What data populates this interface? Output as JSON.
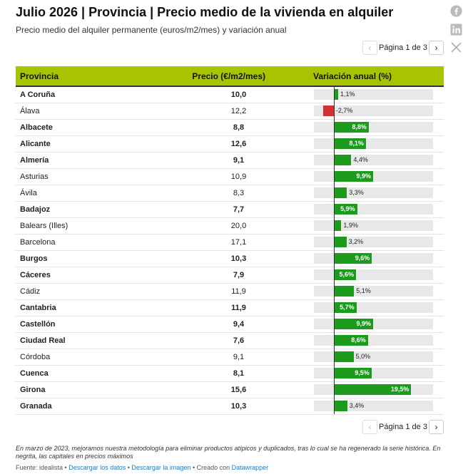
{
  "header": {
    "title": "Julio 2026 | Provincia | Precio medio de la vivienda en alquiler",
    "subtitle": "Precio medio del alquiler permanente (euros/m2/mes) y variación anual"
  },
  "social": {
    "facebook_icon": "facebook-icon",
    "linkedin_icon": "linkedin-icon",
    "x_icon": "x-icon"
  },
  "pagination": {
    "label": "Página 1 de 3",
    "prev_glyph": "‹",
    "next_glyph": "›"
  },
  "colors": {
    "header_bg": "#a8c400",
    "positive": "#1c9a1c",
    "negative": "#d23232",
    "bar_track": "#e8e8e8",
    "link": "#1f7bbf"
  },
  "chart_data": {
    "type": "table",
    "columns": [
      "Provincia",
      "Precio (€/m2/mes)",
      "Variación anual (%)"
    ],
    "var_range": [
      -5,
      25
    ],
    "rows": [
      {
        "provincia": "A Coruña",
        "precio": "10,0",
        "variacion": 1.1,
        "variacion_label": "1,1%",
        "capital": true
      },
      {
        "provincia": "Álava",
        "precio": "12,2",
        "variacion": -2.7,
        "variacion_label": "-2,7%",
        "capital": false
      },
      {
        "provincia": "Albacete",
        "precio": "8,8",
        "variacion": 8.8,
        "variacion_label": "8,8%",
        "capital": true
      },
      {
        "provincia": "Alicante",
        "precio": "12,6",
        "variacion": 8.1,
        "variacion_label": "8,1%",
        "capital": true
      },
      {
        "provincia": "Almería",
        "precio": "9,1",
        "variacion": 4.4,
        "variacion_label": "4,4%",
        "capital": true
      },
      {
        "provincia": "Asturias",
        "precio": "10,9",
        "variacion": 9.9,
        "variacion_label": "9,9%",
        "capital": false
      },
      {
        "provincia": "Ávila",
        "precio": "8,3",
        "variacion": 3.3,
        "variacion_label": "3,3%",
        "capital": false
      },
      {
        "provincia": "Badajoz",
        "precio": "7,7",
        "variacion": 5.9,
        "variacion_label": "5,9%",
        "capital": true
      },
      {
        "provincia": "Balears (Illes)",
        "precio": "20,0",
        "variacion": 1.9,
        "variacion_label": "1,9%",
        "capital": false
      },
      {
        "provincia": "Barcelona",
        "precio": "17,1",
        "variacion": 3.2,
        "variacion_label": "3,2%",
        "capital": false
      },
      {
        "provincia": "Burgos",
        "precio": "10,3",
        "variacion": 9.6,
        "variacion_label": "9,6%",
        "capital": true
      },
      {
        "provincia": "Cáceres",
        "precio": "7,9",
        "variacion": 5.6,
        "variacion_label": "5,6%",
        "capital": true
      },
      {
        "provincia": "Cádiz",
        "precio": "11,9",
        "variacion": 5.1,
        "variacion_label": "5,1%",
        "capital": false
      },
      {
        "provincia": "Cantabria",
        "precio": "11,9",
        "variacion": 5.7,
        "variacion_label": "5,7%",
        "capital": true
      },
      {
        "provincia": "Castellón",
        "precio": "9,4",
        "variacion": 9.9,
        "variacion_label": "9,9%",
        "capital": true
      },
      {
        "provincia": "Ciudad Real",
        "precio": "7,6",
        "variacion": 8.6,
        "variacion_label": "8,6%",
        "capital": true
      },
      {
        "provincia": "Córdoba",
        "precio": "9,1",
        "variacion": 5.0,
        "variacion_label": "5,0%",
        "capital": false
      },
      {
        "provincia": "Cuenca",
        "precio": "8,1",
        "variacion": 9.5,
        "variacion_label": "9,5%",
        "capital": true
      },
      {
        "provincia": "Girona",
        "precio": "15,6",
        "variacion": 19.5,
        "variacion_label": "19,5%",
        "capital": true
      },
      {
        "provincia": "Granada",
        "precio": "10,3",
        "variacion": 3.4,
        "variacion_label": "3,4%",
        "capital": true
      }
    ]
  },
  "footer": {
    "note": "En marzo de 2023, mejoramos nuestra metodología para eliminar productos atípicos y duplicados, tras lo cual se ha regenerado la serie histórica. En negrita, las capitales en precios máximos",
    "source_prefix": "Fuente: idealista",
    "sep": " • ",
    "download_data": "Descargar los datos",
    "download_image": "Descargar la imagen",
    "created_with": "Creado con",
    "datawrapper": "Datawrapper"
  }
}
